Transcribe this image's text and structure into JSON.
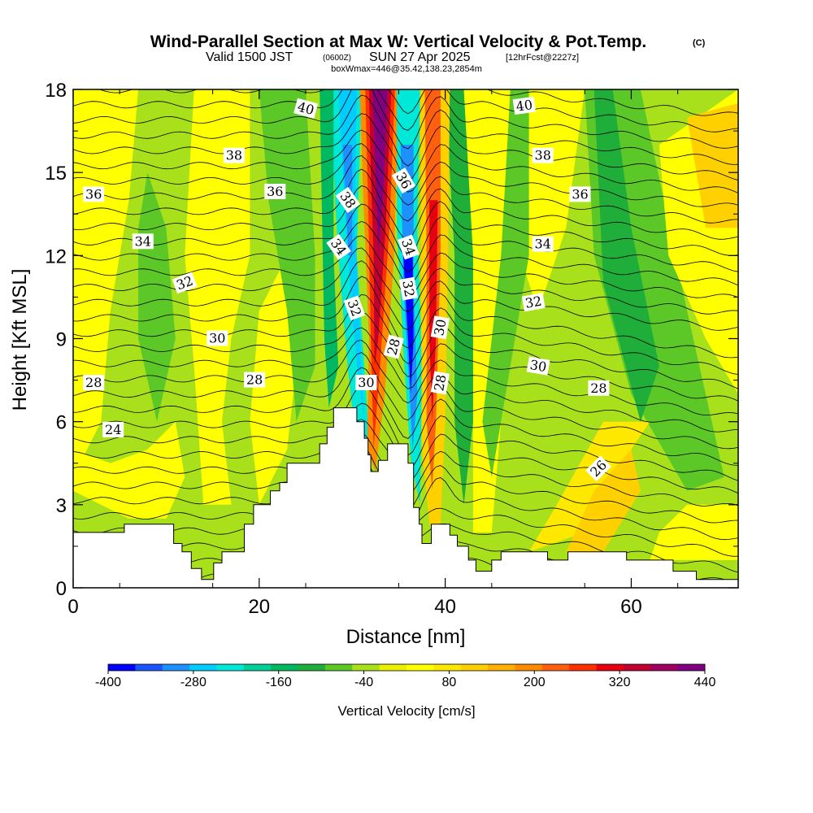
{
  "header": {
    "title": "Wind-Parallel Section at Max W: Vertical Velocity & Pot.Temp.",
    "copyright": "(C)",
    "valid_prefix": "Valid 1500 JST",
    "valid_zulu": "(0600Z)",
    "valid_date": "SUN 27 Apr 2025",
    "forecast_info": "[12hrFcst@2227z]",
    "box_info": "boxWmax=446@35.42,138.23,2854m"
  },
  "chart_data": {
    "type": "heatmap",
    "xlabel": "Distance [nm]",
    "ylabel": "Height [Kft MSL]",
    "xlim": [
      0,
      71.5
    ],
    "ylim": [
      0,
      18
    ],
    "x_ticks": [
      0,
      20,
      40,
      60
    ],
    "y_ticks": [
      0,
      3,
      6,
      9,
      12,
      15,
      18
    ],
    "colorbar": {
      "title": "Vertical Velocity [cm/s]",
      "tick_labels": [
        -400,
        -280,
        -160,
        -40,
        80,
        200,
        320,
        440
      ],
      "range": [
        -400,
        440
      ],
      "colors": [
        "#0000ff",
        "#1a55ff",
        "#1e90ff",
        "#00ccff",
        "#00e8d8",
        "#00d098",
        "#00b860",
        "#1fae3a",
        "#5cc828",
        "#a8e01c",
        "#eaf000",
        "#ffff00",
        "#ffe800",
        "#ffd000",
        "#ffb000",
        "#ff8c00",
        "#ff6010",
        "#ff3000",
        "#e80010",
        "#c00030",
        "#a00060",
        "#800080"
      ]
    },
    "w_features_cm_s": [
      {
        "x_nm": 33,
        "peak": 440,
        "sign": "updraft"
      },
      {
        "x_nm": 30.5,
        "peak": -300,
        "sign": "downdraft"
      },
      {
        "x_nm": 36,
        "peak": -400,
        "sign": "downdraft"
      },
      {
        "x_nm": 39.5,
        "peak": 300,
        "sign": "updraft"
      },
      {
        "x_nm": 42,
        "peak": -140,
        "sign": "downdraft"
      },
      {
        "x_nm": 53,
        "peak": -60,
        "sign": "downdraft"
      },
      {
        "x_nm": 57,
        "peak": 120,
        "sign": "updraft"
      }
    ],
    "theta_contour_labels": [
      {
        "text": "40",
        "x": 25,
        "y": 17.3,
        "rot": 15
      },
      {
        "text": "40",
        "x": 48.5,
        "y": 17.4,
        "rot": -8
      },
      {
        "text": "38",
        "x": 17.3,
        "y": 15.6,
        "rot": 0
      },
      {
        "text": "38",
        "x": 29.5,
        "y": 14.0,
        "rot": 55
      },
      {
        "text": "38",
        "x": 50.5,
        "y": 15.6,
        "rot": 0
      },
      {
        "text": "36",
        "x": 2.2,
        "y": 14.2,
        "rot": 0
      },
      {
        "text": "36",
        "x": 21.7,
        "y": 14.3,
        "rot": 0
      },
      {
        "text": "36",
        "x": 35.5,
        "y": 14.7,
        "rot": 60
      },
      {
        "text": "36",
        "x": 54.5,
        "y": 14.2,
        "rot": 0
      },
      {
        "text": "34",
        "x": 7.5,
        "y": 12.5,
        "rot": 0
      },
      {
        "text": "34",
        "x": 28.5,
        "y": 12.3,
        "rot": 55
      },
      {
        "text": "34",
        "x": 36,
        "y": 12.3,
        "rot": 70
      },
      {
        "text": "34",
        "x": 50.5,
        "y": 12.4,
        "rot": 0
      },
      {
        "text": "32",
        "x": 12,
        "y": 11.0,
        "rot": -20
      },
      {
        "text": "32",
        "x": 30.2,
        "y": 10.1,
        "rot": 70
      },
      {
        "text": "32",
        "x": 36,
        "y": 10.8,
        "rot": 80
      },
      {
        "text": "32",
        "x": 49.5,
        "y": 10.3,
        "rot": -10
      },
      {
        "text": "30",
        "x": 15.5,
        "y": 9.0,
        "rot": 0
      },
      {
        "text": "30",
        "x": 39.5,
        "y": 9.4,
        "rot": -80
      },
      {
        "text": "30",
        "x": 31.5,
        "y": 7.4,
        "rot": 0
      },
      {
        "text": "30",
        "x": 50,
        "y": 8.0,
        "rot": 10
      },
      {
        "text": "28",
        "x": 2.2,
        "y": 7.4,
        "rot": 0
      },
      {
        "text": "28",
        "x": 19.5,
        "y": 7.5,
        "rot": 0
      },
      {
        "text": "28",
        "x": 34.5,
        "y": 8.7,
        "rot": -75
      },
      {
        "text": "28",
        "x": 39.5,
        "y": 7.4,
        "rot": -80
      },
      {
        "text": "28",
        "x": 56.5,
        "y": 7.2,
        "rot": 0
      },
      {
        "text": "26",
        "x": 56.5,
        "y": 4.3,
        "rot": -45
      },
      {
        "text": "24",
        "x": 4.3,
        "y": 5.7,
        "rot": 0
      }
    ],
    "terrain_kft": [
      [
        0,
        2
      ],
      [
        5.5,
        2
      ],
      [
        5.5,
        2.3
      ],
      [
        10.8,
        2.3
      ],
      [
        10.8,
        1.6
      ],
      [
        11.7,
        1.6
      ],
      [
        11.7,
        1.3
      ],
      [
        12.7,
        1.3
      ],
      [
        12.7,
        0.7
      ],
      [
        13.8,
        0.7
      ],
      [
        13.8,
        0.3
      ],
      [
        15.1,
        0.3
      ],
      [
        15.1,
        0.9
      ],
      [
        16,
        0.9
      ],
      [
        16,
        1.3
      ],
      [
        18.4,
        1.3
      ],
      [
        18.4,
        2.3
      ],
      [
        19.4,
        2.3
      ],
      [
        19.4,
        3
      ],
      [
        21.2,
        3
      ],
      [
        21.2,
        3.5
      ],
      [
        22.2,
        3.5
      ],
      [
        22.2,
        3.8
      ],
      [
        23,
        3.8
      ],
      [
        23,
        4.5
      ],
      [
        26.5,
        4.5
      ],
      [
        26.5,
        5.2
      ],
      [
        27.3,
        5.2
      ],
      [
        27.3,
        5.8
      ],
      [
        28,
        5.8
      ],
      [
        28,
        6.5
      ],
      [
        30.5,
        6.5
      ],
      [
        30.5,
        6
      ],
      [
        31.3,
        6
      ],
      [
        31.3,
        5.4
      ],
      [
        31.7,
        5.4
      ],
      [
        31.7,
        4.8
      ],
      [
        32,
        4.8
      ],
      [
        32,
        4.2
      ],
      [
        32.8,
        4.2
      ],
      [
        32.8,
        4.6
      ],
      [
        33.8,
        4.6
      ],
      [
        33.8,
        5.2
      ],
      [
        36,
        5.2
      ],
      [
        36,
        4.5
      ],
      [
        36.6,
        4.5
      ],
      [
        36.6,
        2.9
      ],
      [
        37.2,
        2.9
      ],
      [
        37.2,
        2.3
      ],
      [
        37.5,
        2.3
      ],
      [
        37.5,
        1.6
      ],
      [
        38.5,
        1.6
      ],
      [
        38.5,
        2.3
      ],
      [
        40.5,
        2.3
      ],
      [
        40.5,
        1.9
      ],
      [
        41.3,
        1.9
      ],
      [
        41.3,
        1.5
      ],
      [
        42.5,
        1.5
      ],
      [
        42.5,
        1.0
      ],
      [
        43.3,
        1.0
      ],
      [
        43.3,
        0.6
      ],
      [
        45,
        0.6
      ],
      [
        45,
        1.0
      ],
      [
        46,
        1.0
      ],
      [
        46,
        1.3
      ],
      [
        49,
        1.3
      ],
      [
        49,
        1.3
      ],
      [
        51,
        1.3
      ],
      [
        51,
        1.0
      ],
      [
        53.2,
        1.0
      ],
      [
        53.2,
        1.3
      ],
      [
        59.5,
        1.3
      ],
      [
        59.5,
        1.0
      ],
      [
        64.5,
        1.0
      ],
      [
        64.5,
        0.6
      ],
      [
        67,
        0.6
      ],
      [
        67,
        0.3
      ],
      [
        71.5,
        0.3
      ]
    ]
  }
}
